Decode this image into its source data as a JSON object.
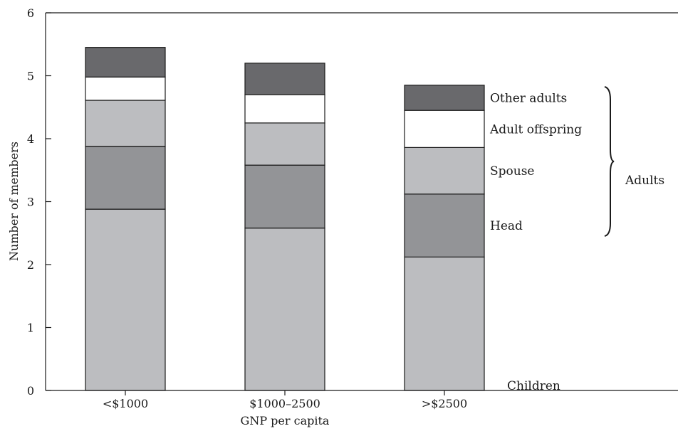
{
  "chart_data": {
    "type": "bar",
    "stacked": true,
    "title": "",
    "xlabel": "GNP per capita",
    "ylabel": "Number of members",
    "ylim": [
      0,
      6
    ],
    "yticks": [
      "0",
      "1",
      "2",
      "3",
      "4",
      "5",
      "6"
    ],
    "categories": [
      "<$1000",
      "$1000–2500",
      ">$2500"
    ],
    "series": [
      {
        "name": "Children",
        "color": "#bcbdc0",
        "values": [
          2.88,
          2.58,
          2.12
        ]
      },
      {
        "name": "Head",
        "color": "#939497",
        "values": [
          1.0,
          1.0,
          1.0
        ]
      },
      {
        "name": "Spouse",
        "color": "#bcbdc0",
        "values": [
          0.73,
          0.67,
          0.74
        ]
      },
      {
        "name": "Adult offspring",
        "color": "#ffffff",
        "values": [
          0.37,
          0.45,
          0.59
        ]
      },
      {
        "name": "Other adults",
        "color": "#69696c",
        "values": [
          0.47,
          0.5,
          0.4
        ]
      }
    ],
    "group_label": "Adults",
    "grid": false
  }
}
